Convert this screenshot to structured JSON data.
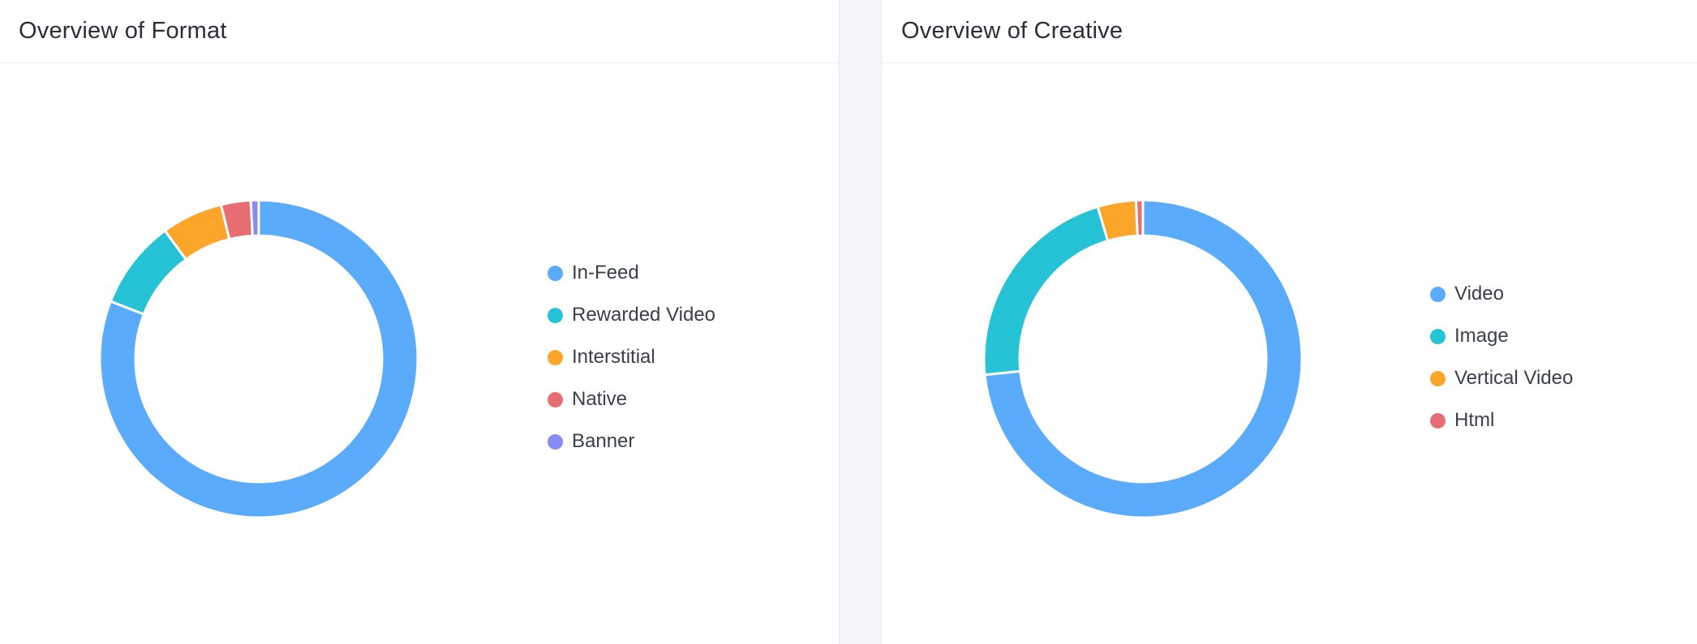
{
  "panels": [
    {
      "title": "Overview of Format",
      "legend": [
        {
          "label": "In-Feed",
          "color": "#5aabfc"
        },
        {
          "label": "Rewarded Video",
          "color": "#26c2d6"
        },
        {
          "label": "Interstitial",
          "color": "#fba62a"
        },
        {
          "label": "Native",
          "color": "#e66e72"
        },
        {
          "label": "Banner",
          "color": "#8a8cf5"
        }
      ]
    },
    {
      "title": "Overview of Creative",
      "legend": [
        {
          "label": "Video",
          "color": "#5aabfc"
        },
        {
          "label": "Image",
          "color": "#26c2d6"
        },
        {
          "label": "Vertical Video",
          "color": "#fba62a"
        },
        {
          "label": "Html",
          "color": "#e66e72"
        }
      ]
    }
  ],
  "chart_data": [
    {
      "type": "pie",
      "title": "Overview of Format",
      "categories": [
        "In-Feed",
        "Rewarded Video",
        "Interstitial",
        "Native",
        "Banner"
      ],
      "values": [
        80.5,
        9.0,
        6.2,
        3.0,
        0.8
      ],
      "colors": [
        "#5aabfc",
        "#26c2d6",
        "#fba62a",
        "#e66e72",
        "#8a8cf5"
      ],
      "legend": "right"
    },
    {
      "type": "pie",
      "title": "Overview of Creative",
      "categories": [
        "Video",
        "Image",
        "Vertical Video",
        "Html"
      ],
      "values": [
        73.4,
        22.0,
        3.9,
        0.7
      ],
      "colors": [
        "#5aabfc",
        "#26c2d6",
        "#fba62a",
        "#e66e72"
      ],
      "legend": "right"
    }
  ]
}
